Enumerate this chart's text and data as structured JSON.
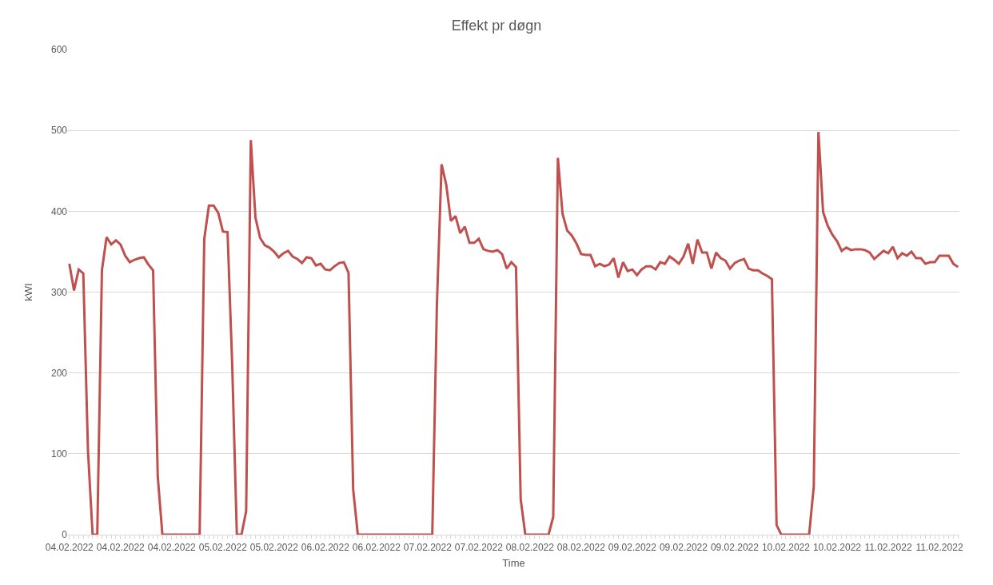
{
  "chart_data": {
    "type": "line",
    "title": "Effekt pr døgn",
    "xlabel": "Time",
    "ylabel": "kWI",
    "categories": [
      "04.02.2022",
      null,
      null,
      null,
      null,
      null,
      null,
      null,
      null,
      null,
      null,
      "04.02.2022",
      null,
      null,
      null,
      null,
      null,
      null,
      null,
      null,
      null,
      null,
      "04.02.2022",
      null,
      null,
      null,
      null,
      null,
      null,
      null,
      null,
      null,
      null,
      "05.02.2022",
      null,
      null,
      null,
      null,
      null,
      null,
      null,
      null,
      null,
      null,
      "05.02.2022",
      null,
      null,
      null,
      null,
      null,
      null,
      null,
      null,
      null,
      null,
      "06.02.2022",
      null,
      null,
      null,
      null,
      null,
      null,
      null,
      null,
      null,
      null,
      "06.02.2022",
      null,
      null,
      null,
      null,
      null,
      null,
      null,
      null,
      null,
      null,
      "07.02.2022",
      null,
      null,
      null,
      null,
      null,
      null,
      null,
      null,
      null,
      null,
      "07.02.2022",
      null,
      null,
      null,
      null,
      null,
      null,
      null,
      null,
      null,
      null,
      "08.02.2022",
      null,
      null,
      null,
      null,
      null,
      null,
      null,
      null,
      null,
      null,
      "08.02.2022",
      null,
      null,
      null,
      null,
      null,
      null,
      null,
      null,
      null,
      null,
      "09.02.2022",
      null,
      null,
      null,
      null,
      null,
      null,
      null,
      null,
      null,
      null,
      "09.02.2022",
      null,
      null,
      null,
      null,
      null,
      null,
      null,
      null,
      null,
      null,
      "09.02.2022",
      null,
      null,
      null,
      null,
      null,
      null,
      null,
      null,
      null,
      null,
      "10.02.2022",
      null,
      null,
      null,
      null,
      null,
      null,
      null,
      null,
      null,
      null,
      "10.02.2022",
      null,
      null,
      null,
      null,
      null,
      null,
      null,
      null,
      null,
      null,
      "11.02.2022",
      null,
      null,
      null,
      null,
      null,
      null,
      null,
      null,
      null,
      null,
      "11.02.2022",
      null,
      null,
      null,
      null
    ],
    "series": [
      {
        "color": "#c0504d",
        "values": [
          335,
          302,
          328,
          323,
          104,
          0,
          0,
          327,
          368,
          359,
          364,
          359,
          345,
          337,
          340,
          342,
          343,
          334,
          327,
          72,
          0,
          0,
          0,
          0,
          0,
          0,
          0,
          0,
          0,
          366,
          407,
          407,
          398,
          375,
          374,
          210,
          0,
          0,
          29,
          488,
          392,
          367,
          358,
          355,
          350,
          343,
          348,
          351,
          344,
          341,
          336,
          343,
          342,
          333,
          335,
          328,
          327,
          332,
          336,
          337,
          324,
          56,
          0,
          0,
          0,
          0,
          0,
          0,
          0,
          0,
          0,
          0,
          0,
          0,
          0,
          0,
          0,
          0,
          0,
          285,
          458,
          433,
          388,
          394,
          373,
          381,
          361,
          361,
          366,
          353,
          351,
          350,
          352,
          347,
          329,
          337,
          331,
          44,
          0,
          0,
          0,
          0,
          0,
          0,
          22,
          466,
          397,
          376,
          370,
          360,
          347,
          346,
          346,
          332,
          335,
          332,
          334,
          342,
          318,
          337,
          326,
          328,
          321,
          328,
          332,
          332,
          328,
          337,
          335,
          344,
          340,
          335,
          344,
          360,
          335,
          365,
          349,
          349,
          329,
          349,
          342,
          339,
          329,
          336,
          339,
          341,
          329,
          327,
          327,
          323,
          320,
          316,
          12,
          0,
          0,
          0,
          0,
          0,
          0,
          0,
          60,
          498,
          399,
          382,
          371,
          363,
          351,
          355,
          352,
          353,
          353,
          352,
          349,
          341,
          346,
          351,
          348,
          356,
          342,
          348,
          345,
          350,
          342,
          342,
          335,
          337,
          337,
          345,
          345,
          345,
          335,
          331
        ]
      }
    ],
    "ylim": [
      0,
      600
    ],
    "yticks": [
      0,
      100,
      200,
      300,
      400,
      500,
      600
    ],
    "grid": "y",
    "line_style": "solid",
    "marker": "none"
  }
}
